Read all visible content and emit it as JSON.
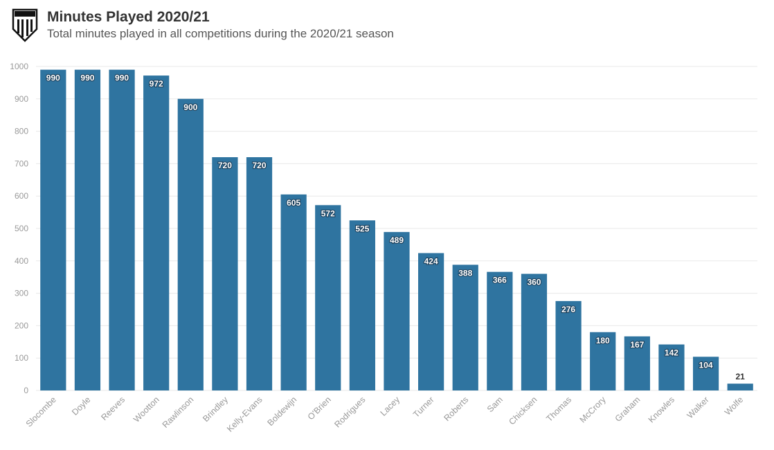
{
  "header": {
    "title": "Minutes Played 2020/21",
    "subtitle": "Total minutes played in all competitions during the 2020/21 season",
    "logo_icon": "club-crest-icon"
  },
  "colors": {
    "bar": "#2f74a0",
    "grid": "#e8e8e8",
    "axis_text": "#999999",
    "title": "#333333"
  },
  "chart_data": {
    "type": "bar",
    "title": "Minutes Played 2020/21",
    "subtitle": "Total minutes played in all competitions during the 2020/21 season",
    "xlabel": "",
    "ylabel": "",
    "ylim": [
      0,
      1000
    ],
    "yticks": [
      0,
      100,
      200,
      300,
      400,
      500,
      600,
      700,
      800,
      900,
      1000
    ],
    "grid": true,
    "legend": "none",
    "categories": [
      "Slocombe",
      "Doyle",
      "Reeves",
      "Wootton",
      "Rawlinson",
      "Brindley",
      "Kelly-Evans",
      "Boldewijn",
      "O'Brien",
      "Rodrigues",
      "Lacey",
      "Turner",
      "Roberts",
      "Sam",
      "Chicksen",
      "Thomas",
      "McCrory",
      "Graham",
      "Knowles",
      "Walker",
      "Wolfe"
    ],
    "values": [
      990,
      990,
      990,
      972,
      900,
      720,
      720,
      605,
      572,
      525,
      489,
      424,
      388,
      366,
      360,
      276,
      180,
      167,
      142,
      104,
      21
    ]
  }
}
